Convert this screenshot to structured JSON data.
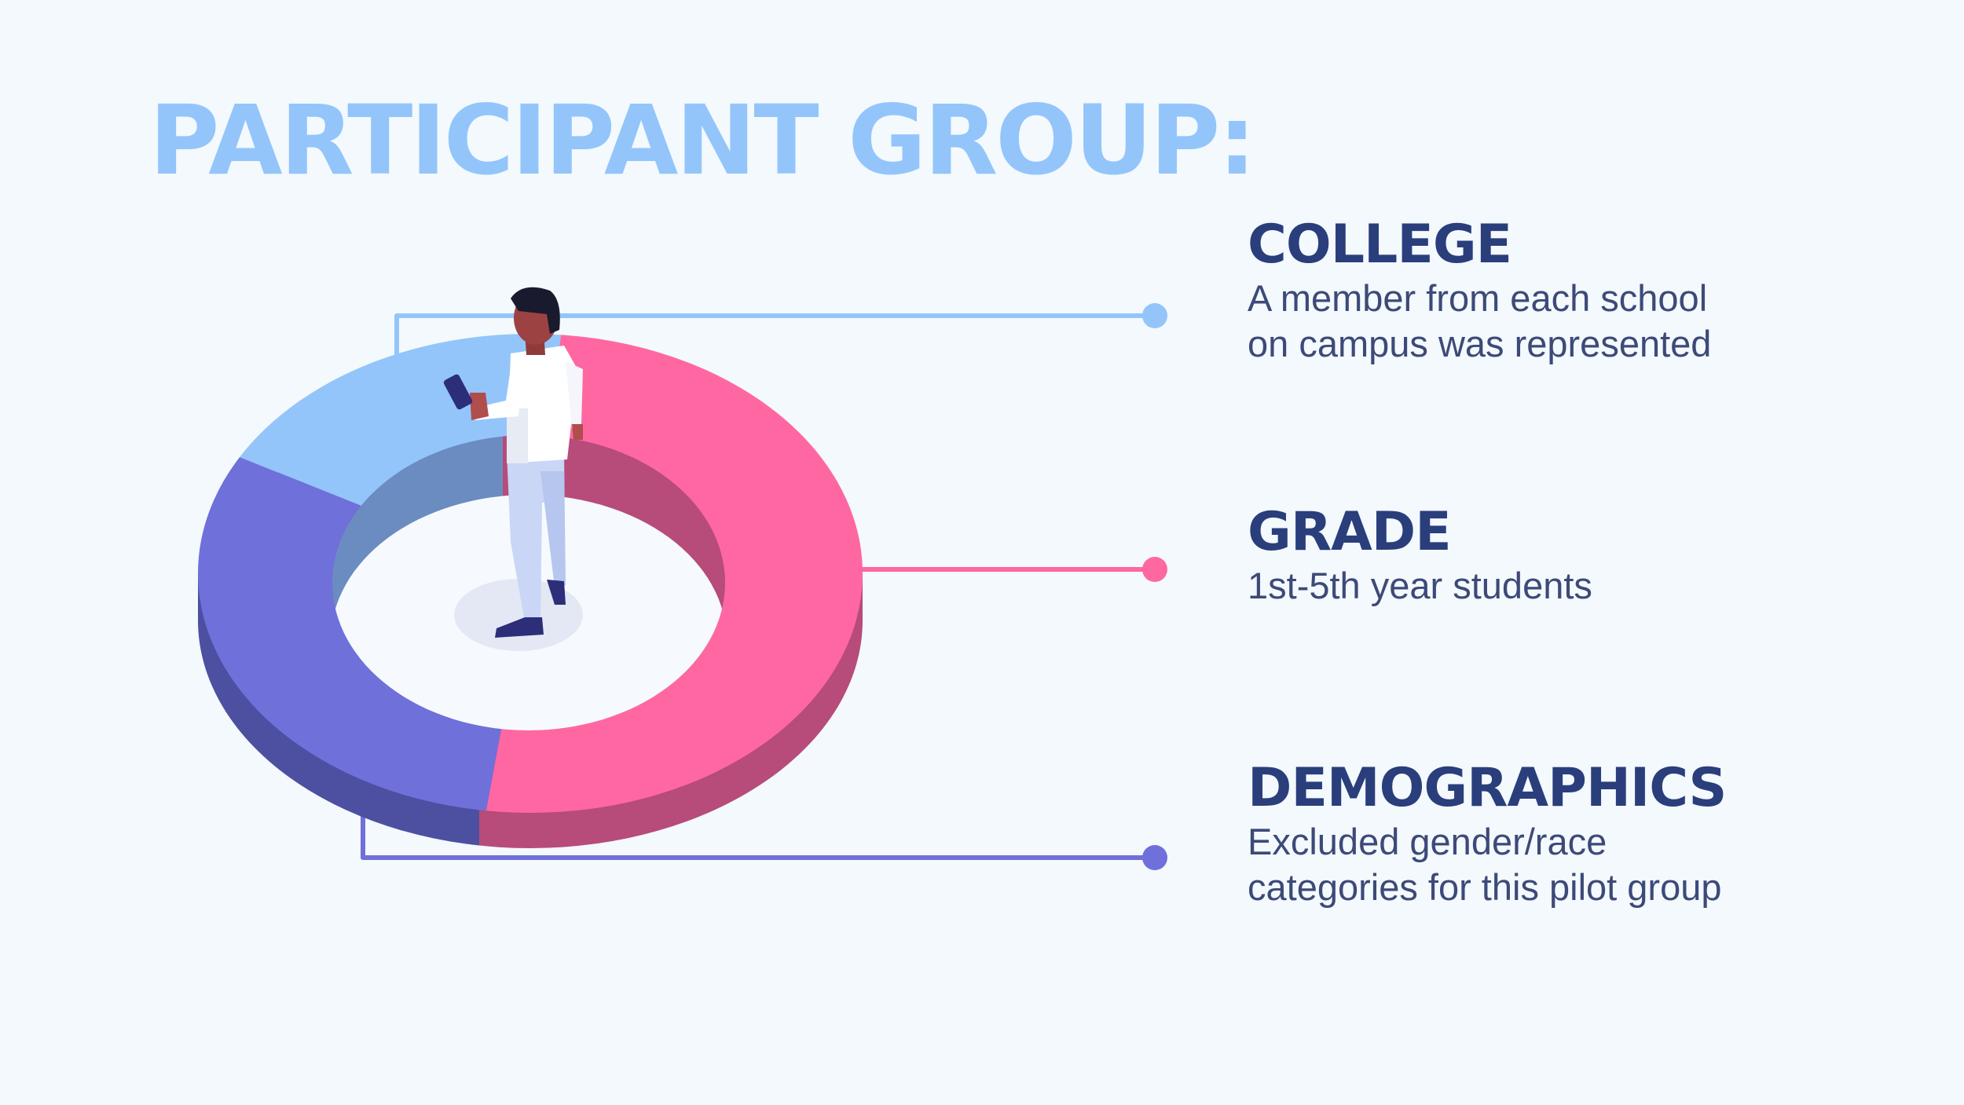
{
  "title": "PARTICIPANT GROUP:",
  "colors": {
    "background": "#f3f9fc",
    "title": "#93c5fb",
    "heading": "#2a3e7c",
    "college": "#93c5fb",
    "grade": "#ff67a3",
    "demographics": "#6f70da"
  },
  "items": [
    {
      "heading": "COLLEGE",
      "text": "A member from each school on campus was represented",
      "color": "#93c5fb"
    },
    {
      "heading": "GRADE",
      "text": "1st-5th year students",
      "color": "#ff67a3"
    },
    {
      "heading": "DEMOGRAPHICS",
      "text": "Excluded gender/race categories for this pilot group",
      "color": "#6f70da"
    }
  ],
  "figure": "person-standing-with-phone"
}
